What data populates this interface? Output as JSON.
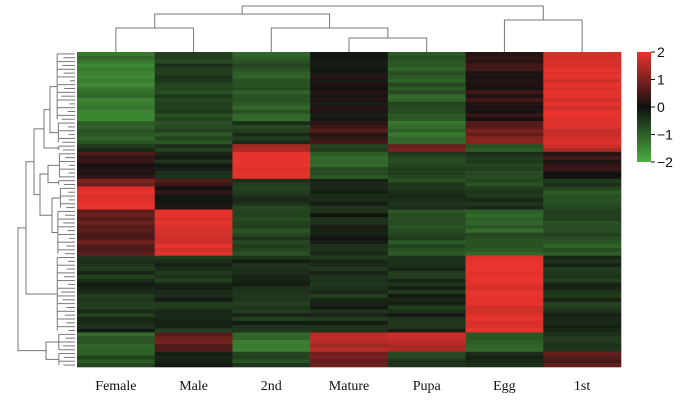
{
  "chart_data": {
    "type": "heatmap",
    "title": "",
    "xlabel": "",
    "ylabel": "",
    "columns": [
      "Female",
      "Male",
      "2nd",
      "Mature",
      "Pupa",
      "Egg",
      "1st"
    ],
    "colorbar": {
      "range": [
        -2,
        2
      ],
      "ticks": [
        2,
        1,
        0,
        -1,
        -2
      ],
      "tick_labels": [
        "2",
        "1",
        "0",
        "−1",
        "−2"
      ],
      "colors": {
        "low": "#4caf3e",
        "mid": "#111111",
        "high": "#e8332d"
      }
    },
    "row_blocks": [
      {
        "rows": 18,
        "values": [
          -1.3,
          -0.6,
          -0.9,
          0.05,
          -0.9,
          0.2,
          2.0
        ]
      },
      {
        "rows": 6,
        "values": [
          -0.8,
          -0.7,
          -0.5,
          0.4,
          -1.1,
          0.9,
          1.8
        ]
      },
      {
        "rows": 2,
        "values": [
          -0.5,
          -0.6,
          1.2,
          -0.6,
          0.8,
          -0.9,
          1.6
        ]
      },
      {
        "rows": 7,
        "values": [
          0.3,
          -0.3,
          2.0,
          -0.9,
          -0.6,
          -0.5,
          0.2
        ]
      },
      {
        "rows": 2,
        "values": [
          0.9,
          0.6,
          -0.4,
          -0.4,
          -0.6,
          -0.6,
          -0.4
        ]
      },
      {
        "rows": 6,
        "values": [
          2.0,
          0.1,
          -0.5,
          -0.4,
          -0.5,
          -0.4,
          -0.7
        ]
      },
      {
        "rows": 12,
        "values": [
          0.7,
          2.0,
          -0.6,
          -0.2,
          -0.7,
          -0.9,
          -0.8
        ]
      },
      {
        "rows": 20,
        "values": [
          -0.35,
          -0.35,
          -0.35,
          -0.35,
          -0.35,
          2.0,
          -0.4
        ]
      },
      {
        "rows": 5,
        "values": [
          -1.0,
          0.7,
          -1.2,
          1.5,
          1.6,
          -0.9,
          -0.3
        ]
      },
      {
        "rows": 4,
        "values": [
          -0.8,
          -0.2,
          -0.6,
          0.9,
          -0.5,
          -0.4,
          0.6
        ]
      }
    ]
  }
}
